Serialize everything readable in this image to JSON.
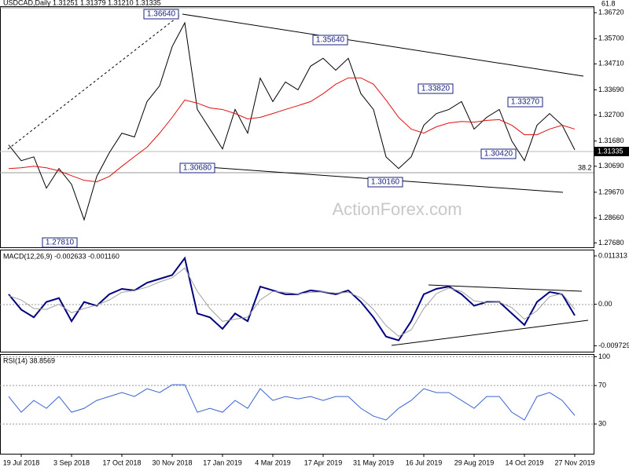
{
  "chart_data": [
    {
      "type": "line",
      "title": "USDCAD,Daily  1.31251 1.31379 1.31210 1.31335",
      "watermark": "ActionForex.com",
      "categories": [
        null,
        "19 Jul 2018",
        null,
        null,
        null,
        "3 Sep 2018",
        null,
        null,
        null,
        "17 Oct 2018",
        null,
        null,
        null,
        "30 Nov 2018",
        null,
        null,
        null,
        "17 Jan 2019",
        null,
        null,
        null,
        "4 Mar 2019",
        null,
        null,
        null,
        "17 Apr 2019",
        null,
        null,
        null,
        "31 May 2019",
        null,
        null,
        null,
        "16 Jul 2019",
        null,
        null,
        null,
        "29 Aug 2019",
        null,
        null,
        null,
        "14 Oct 2019",
        null,
        null,
        null,
        "27 Nov 2019"
      ],
      "series": [
        {
          "color": "#000000",
          "values": [
            1.3153,
            1.3091,
            1.3106,
            1.2983,
            1.306,
            1.2998,
            1.2859,
            1.3029,
            1.3122,
            1.3199,
            1.3184,
            1.3323,
            1.3385,
            1.3539,
            1.3632,
            1.3292,
            1.3215,
            1.3137,
            1.3292,
            1.3199,
            1.3415,
            1.3323,
            1.34,
            1.3369,
            1.3462,
            1.3493,
            1.3446,
            1.3493,
            1.3354,
            1.3292,
            1.3106,
            1.306,
            1.3106,
            1.323,
            1.3276,
            1.3292,
            1.3323,
            1.3215,
            1.3261,
            1.3292,
            1.3168,
            1.3091,
            1.323,
            1.3276,
            1.323,
            1.31335
          ]
        },
        {
          "color": "#e01010",
          "values": [
            1.306,
            1.3063,
            1.3069,
            1.3063,
            1.3051,
            1.3032,
            1.3014,
            1.3008,
            1.3029,
            1.3069,
            1.3107,
            1.3144,
            1.3199,
            1.3261,
            1.3329,
            1.3317,
            1.3298,
            1.3292,
            1.3276,
            1.3255,
            1.3261,
            1.3276,
            1.3292,
            1.3307,
            1.3323,
            1.3354,
            1.3391,
            1.3416,
            1.3416,
            1.3391,
            1.3329,
            1.3261,
            1.3215,
            1.3199,
            1.3224,
            1.3239,
            1.3245,
            1.3242,
            1.3249,
            1.3252,
            1.323,
            1.3193,
            1.3193,
            1.3215,
            1.323,
            1.3215
          ]
        }
      ],
      "ylim": [
        1.2751,
        1.3694
      ],
      "yticks": [
        {
          "value": 1.3672,
          "label": "1.36720"
        },
        {
          "value": 1.357,
          "label": "1.35700"
        },
        {
          "value": 1.3471,
          "label": "1.34710"
        },
        {
          "value": 1.3369,
          "label": "1.33690"
        },
        {
          "value": 1.327,
          "label": "1.32700"
        },
        {
          "value": 1.3168,
          "label": "1.31680"
        },
        {
          "value": 1.3069,
          "label": "1.30690"
        },
        {
          "value": 1.2967,
          "label": "1.29670"
        },
        {
          "value": 1.2866,
          "label": "1.28660"
        },
        {
          "value": 1.2768,
          "label": "1.27680"
        }
      ],
      "annotations": [
        "1.36640",
        "1.35640",
        "1.33820",
        "1.33270",
        "1.30680",
        "1.30160",
        "1.30420",
        "1.27810"
      ],
      "fib_labels": [
        "61.8",
        "38.2"
      ],
      "last_price_label": "1.31335"
    },
    {
      "type": "line",
      "title": "MACD(12,26,9) -0.002633 -0.001160",
      "series": [
        {
          "color": "#000080",
          "values": [
            0.00234,
            -0.00126,
            -0.00306,
            0.00054,
            0.00144,
            -0.00396,
            0.00054,
            -0.00036,
            0.00234,
            0.0036,
            0.00324,
            0.00504,
            0.00594,
            0.00684,
            0.0108,
            -0.00216,
            -0.00306,
            -0.00576,
            -0.00216,
            -0.00396,
            0.00414,
            0.00324,
            0.00234,
            0.00234,
            0.00324,
            0.00288,
            0.00234,
            0.00324,
            0.00054,
            -0.00306,
            -0.00756,
            -0.00846,
            -0.00396,
            0.00234,
            0.0036,
            0.00414,
            0.00234,
            -0.00036,
            0.00054,
            0.00054,
            -0.00216,
            -0.00486,
            0.00054,
            0.00288,
            0.00234,
            -0.002633
          ]
        },
        {
          "color": "#a0a0a0",
          "values": [
            0.002,
            0.001,
            -0.001,
            -0.0012,
            0,
            -0.002,
            -0.001,
            -0.0002,
            0.001,
            0.0028,
            0.0032,
            0.004,
            0.0052,
            0.0062,
            0.0085,
            0.003,
            -0.001,
            -0.004,
            -0.0035,
            -0.003,
            0.001,
            0.003,
            0.0028,
            0.0024,
            0.0028,
            0.0029,
            0.0026,
            0.0028,
            0.0015,
            -0.0012,
            -0.005,
            -0.0075,
            -0.006,
            -0.001,
            0.0025,
            0.0038,
            0.003,
            0.0008,
            0.0004,
            0.0005,
            -0.0008,
            -0.0035,
            -0.0015,
            0.0018,
            0.0025,
            -0.00116
          ]
        }
      ],
      "ylim": [
        -0.0111,
        0.0126
      ],
      "yticks": [
        0.011313,
        {
          "value": 0,
          "label": "0.00"
        },
        -0.009729
      ]
    },
    {
      "type": "line",
      "title": "RSI(14) 38.8569",
      "series": [
        {
          "color": "#3a62d0",
          "values": [
            58.6,
            42.2,
            54.5,
            46.3,
            58.6,
            42.2,
            46.3,
            54.5,
            58.6,
            62.7,
            58.6,
            66.7,
            62.7,
            70.8,
            70.8,
            42.2,
            46.3,
            42.2,
            54.5,
            46.3,
            66.7,
            54.5,
            58.6,
            56.1,
            58.6,
            54.5,
            58.6,
            58.6,
            46.3,
            38.2,
            34.1,
            46.3,
            54.5,
            66.7,
            62.7,
            62.7,
            54.5,
            46.3,
            58.6,
            58.6,
            42.2,
            34.1,
            58.6,
            62.7,
            54.5,
            38.8569
          ]
        }
      ],
      "ylim": [
        -1,
        102
      ],
      "yticks": [
        100,
        70,
        30
      ]
    }
  ]
}
